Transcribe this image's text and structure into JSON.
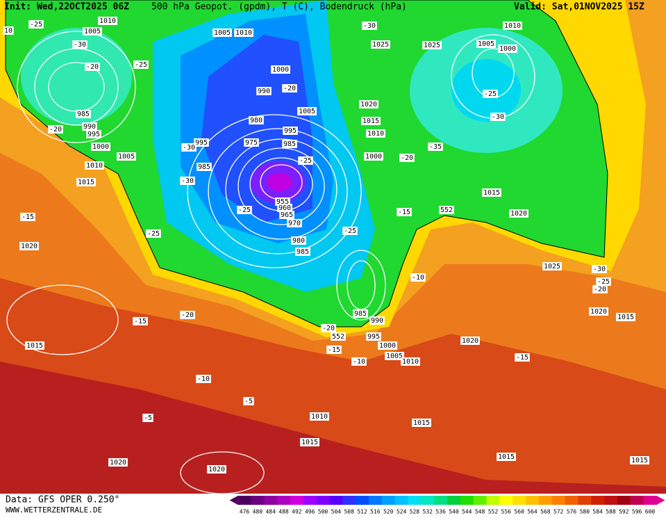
{
  "header": {
    "init": "Init: Wed,22OCT2025 06Z",
    "title": "500 hPa Geopot. (gpdm), T (C), Bodendruck (hPa)",
    "valid": "Valid: Sat,01NOV2025 15Z"
  },
  "footer": {
    "data": "Data: GFS OPER 0.250°",
    "site": "WWW.WETTERZENTRALE.DE"
  },
  "scale": {
    "values": [
      476,
      480,
      484,
      488,
      492,
      496,
      500,
      504,
      508,
      512,
      516,
      520,
      524,
      528,
      532,
      536,
      540,
      544,
      548,
      552,
      556,
      560,
      564,
      568,
      572,
      576,
      580,
      584,
      588,
      592,
      596,
      600
    ],
    "colors": [
      "#4b0060",
      "#6a0080",
      "#8e00a0",
      "#b000c0",
      "#d000e0",
      "#a000ff",
      "#8000ff",
      "#5a00ff",
      "#3030ff",
      "#0050ff",
      "#0078ff",
      "#00a0ff",
      "#00c0ff",
      "#00e0f0",
      "#00e8c0",
      "#00e080",
      "#00d040",
      "#20e000",
      "#60f000",
      "#c0ff00",
      "#ffff00",
      "#ffe000",
      "#ffc000",
      "#ffa000",
      "#ff8000",
      "#f06000",
      "#e04000",
      "#d02000",
      "#c01010",
      "#a00010",
      "#c00050",
      "#e00090"
    ]
  },
  "map_labels": [
    "1010",
    "1005",
    "-25",
    "-30",
    "-20",
    "-25",
    "985",
    "990",
    "995",
    "1000",
    "-20",
    "1005",
    "1010",
    "1015",
    "-15",
    "1020",
    "1015",
    "-15",
    "-20",
    "-10",
    "-5",
    "-5",
    "1020",
    "1020",
    "1005",
    "1010",
    "1000",
    "990",
    "-20",
    "980",
    "995",
    "985",
    "-30",
    "-30",
    "975",
    "995",
    "985",
    "-25",
    "-25",
    "955",
    "960",
    "965",
    "970",
    "980",
    "985",
    "-25",
    "1005",
    "-30",
    "1025",
    "1020",
    "1015",
    "1010",
    "1000",
    "-25",
    "-20",
    "985",
    "990",
    "995",
    "1000",
    "1005",
    "1010",
    "-15",
    "-10",
    "-10",
    "-15",
    "-20",
    "-35",
    "1025",
    "1015",
    "1010",
    "1005",
    "1000",
    "-25",
    "-30",
    "1020",
    "1025",
    "-30",
    "-25",
    "-20",
    "1020",
    "1015",
    "1020",
    "-15",
    "1010",
    "1015",
    "1015",
    "1015",
    "1015",
    "10",
    "552",
    "552"
  ]
}
